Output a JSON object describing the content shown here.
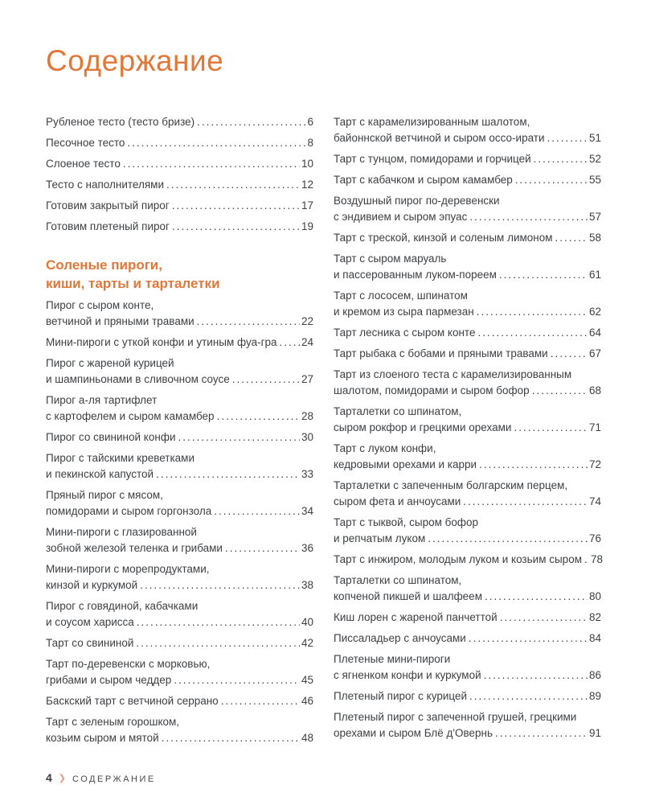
{
  "page": {
    "title": "Содержание"
  },
  "colors": {
    "accent": "#e0783a",
    "text": "#3e4043",
    "footer_chevron": "#d7a183"
  },
  "toc": {
    "left_column": [
      {
        "type": "entry",
        "lines": [
          "Рубленое тесто (тесто бризе)"
        ],
        "page": "6"
      },
      {
        "type": "entry",
        "lines": [
          "Песочное тесто"
        ],
        "page": "8"
      },
      {
        "type": "entry",
        "lines": [
          "Слоеное тесто"
        ],
        "page": "10"
      },
      {
        "type": "entry",
        "lines": [
          "Тесто с наполнителями"
        ],
        "page": "12"
      },
      {
        "type": "entry",
        "lines": [
          "Готовим закрытый пирог"
        ],
        "page": "17"
      },
      {
        "type": "entry",
        "lines": [
          "Готовим плетеный пирог"
        ],
        "page": "19"
      },
      {
        "type": "section",
        "lines": [
          "Соленые пироги,",
          "киши, тарты и тарталетки"
        ]
      },
      {
        "type": "entry",
        "lines": [
          "Пирог с сыром конте,",
          "ветчиной и пряными травами"
        ],
        "page": "22"
      },
      {
        "type": "entry",
        "lines": [
          "Мини-пироги с уткой конфи и утиным фуа-гра"
        ],
        "page": "24"
      },
      {
        "type": "entry",
        "lines": [
          "Пирог с жареной курицей",
          "и шампиньонами в сливочном соусе"
        ],
        "page": "27"
      },
      {
        "type": "entry",
        "lines": [
          "Пирог а-ля тартифлет",
          "с картофелем и сыром камамбер"
        ],
        "page": "28"
      },
      {
        "type": "entry",
        "lines": [
          "Пирог со свининой конфи"
        ],
        "page": "30"
      },
      {
        "type": "entry",
        "lines": [
          "Пирог с тайскими креветками",
          "и пекинской капустой"
        ],
        "page": "33"
      },
      {
        "type": "entry",
        "lines": [
          "Пряный пирог с мясом,",
          "помидорами и сыром горгонзола"
        ],
        "page": "34"
      },
      {
        "type": "entry",
        "lines": [
          "Мини-пироги с глазированной",
          "зобной железой теленка и грибами"
        ],
        "page": "36"
      },
      {
        "type": "entry",
        "lines": [
          "Мини-пироги с морепродуктами,",
          "кинзой и куркумой"
        ],
        "page": "38"
      },
      {
        "type": "entry",
        "lines": [
          "Пирог с говядиной, кабачками",
          "и соусом харисса"
        ],
        "page": "40"
      },
      {
        "type": "entry",
        "lines": [
          "Тарт со свининой"
        ],
        "page": "42"
      },
      {
        "type": "entry",
        "lines": [
          "Тарт по-деревенски с морковью,",
          "грибами и сыром чеддер"
        ],
        "page": "45"
      },
      {
        "type": "entry",
        "lines": [
          "Баскский тарт с ветчиной серрано"
        ],
        "page": "46"
      },
      {
        "type": "entry",
        "lines": [
          "Тарт с зеленым горошком,",
          "козьим сыром и мятой"
        ],
        "page": "48"
      }
    ],
    "right_column": [
      {
        "type": "entry",
        "lines": [
          "Тарт с карамелизированным шалотом,",
          "байоннской ветчиной и сыром оссо-ирати"
        ],
        "page": "51"
      },
      {
        "type": "entry",
        "lines": [
          "Тарт с тунцом, помидорами и горчицей"
        ],
        "page": "52"
      },
      {
        "type": "entry",
        "lines": [
          "Тарт с кабачком и сыром камамбер"
        ],
        "page": "55"
      },
      {
        "type": "entry",
        "lines": [
          "Воздушный пирог по-деревенски",
          "с эндивием и сыром эпуас"
        ],
        "page": "57"
      },
      {
        "type": "entry",
        "lines": [
          "Тарт с треской, кинзой и соленым лимоном"
        ],
        "page": "58"
      },
      {
        "type": "entry",
        "lines": [
          "Тарт с сыром маруаль",
          "и пассерованным луком-пореем"
        ],
        "page": "61"
      },
      {
        "type": "entry",
        "lines": [
          "Тарт с лососем, шпинатом",
          "и кремом из сыра пармезан"
        ],
        "page": "62"
      },
      {
        "type": "entry",
        "lines": [
          "Тарт лесника с сыром конте"
        ],
        "page": "64"
      },
      {
        "type": "entry",
        "lines": [
          "Тарт рыбака с бобами и пряными травами"
        ],
        "page": "67"
      },
      {
        "type": "entry",
        "lines": [
          "Тарт из слоеного теста с карамелизированным",
          "шалотом, помидорами и сыром бофор"
        ],
        "page": "68"
      },
      {
        "type": "entry",
        "lines": [
          "Тарталетки со шпинатом,",
          "сыром рокфор и грецкими орехами"
        ],
        "page": "71"
      },
      {
        "type": "entry",
        "lines": [
          "Тарт с луком конфи,",
          "кедровыми орехами и карри"
        ],
        "page": "72"
      },
      {
        "type": "entry",
        "lines": [
          "Тарталетки с запеченным болгарским перцем,",
          "сыром фета и анчоусами"
        ],
        "page": "74"
      },
      {
        "type": "entry",
        "lines": [
          "Тарт с тыквой, сыром бофор",
          "и репчатым луком"
        ],
        "page": "76"
      },
      {
        "type": "entry",
        "lines": [
          "Тарт с инжиром, молодым луком и козьим сыром"
        ],
        "page": "78"
      },
      {
        "type": "entry",
        "lines": [
          "Тарталетки со шпинатом,",
          "копченой пикшей и шалфеем"
        ],
        "page": "80"
      },
      {
        "type": "entry",
        "lines": [
          "Киш лорен с жареной панчеттой"
        ],
        "page": "82"
      },
      {
        "type": "entry",
        "lines": [
          "Писсаладьер с анчоусами"
        ],
        "page": "84"
      },
      {
        "type": "entry",
        "lines": [
          "Плетеные мини-пироги",
          "с ягненком конфи и куркумой"
        ],
        "page": "86"
      },
      {
        "type": "entry",
        "lines": [
          "Плетеный пирог с курицей"
        ],
        "page": "89"
      },
      {
        "type": "entry",
        "lines": [
          "Плетеный пирог с запеченной грушей, грецкими",
          "орехами и сыром Блё д'Овернь"
        ],
        "page": "91"
      }
    ]
  },
  "footer": {
    "page_number": "4",
    "chevron": "❯",
    "label": "СОДЕРЖАНИЕ"
  }
}
